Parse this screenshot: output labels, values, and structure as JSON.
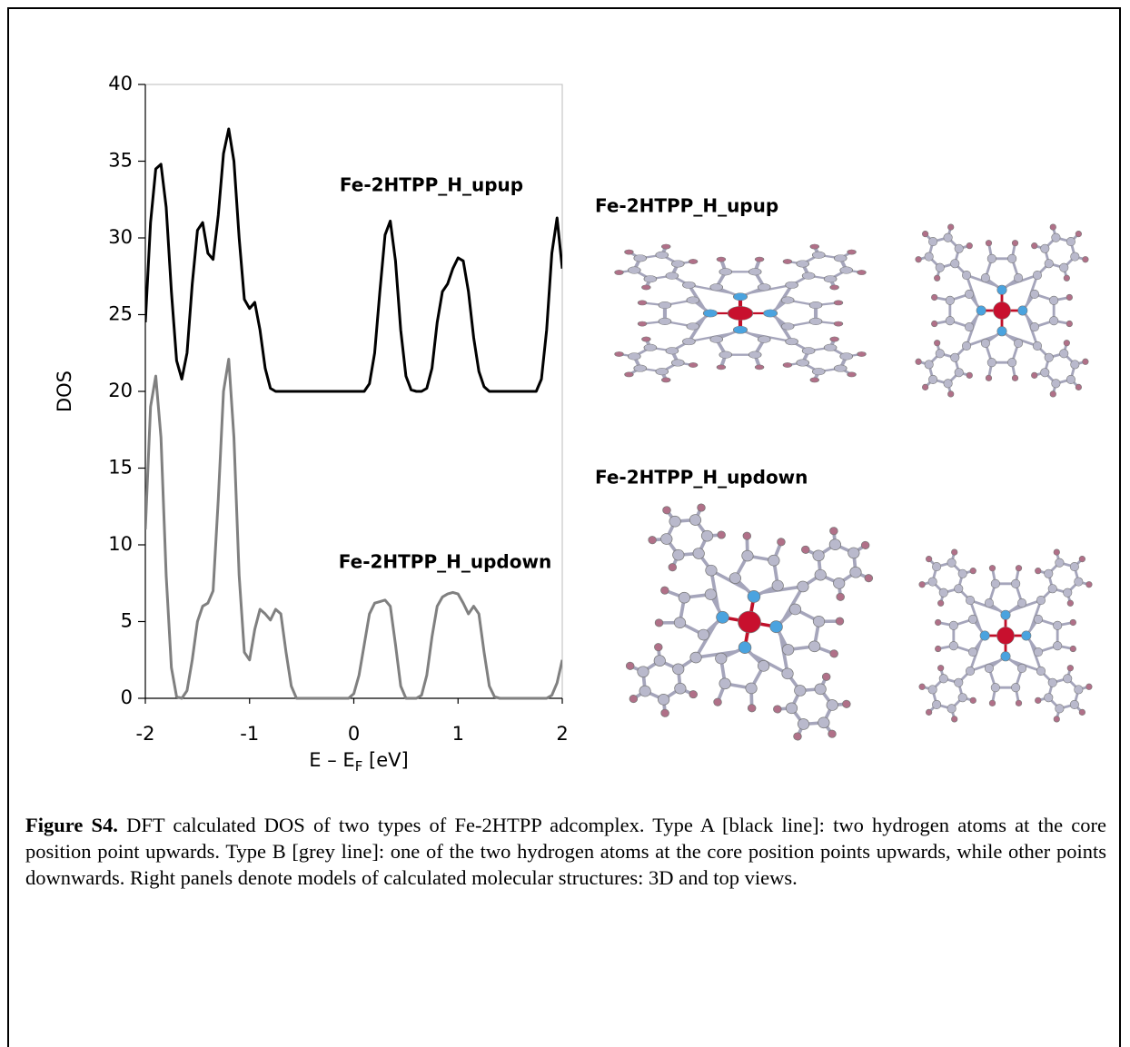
{
  "chart_data": {
    "type": "line",
    "ylabel": "DOS",
    "xlabel": [
      "E – E",
      "F",
      " [eV]"
    ],
    "x": [
      -2,
      -1.95,
      -1.9,
      -1.85,
      -1.8,
      -1.75,
      -1.7,
      -1.65,
      -1.6,
      -1.55,
      -1.5,
      -1.45,
      -1.4,
      -1.35,
      -1.3,
      -1.25,
      -1.2,
      -1.15,
      -1.1,
      -1.05,
      -1,
      -0.95,
      -0.9,
      -0.85,
      -0.8,
      -0.75,
      -0.7,
      -0.65,
      -0.6,
      -0.55,
      -0.5,
      -0.45,
      -0.4,
      -0.35,
      -0.3,
      -0.25,
      -0.2,
      -0.15,
      -0.1,
      -0.05,
      0,
      0.05,
      0.1,
      0.15,
      0.2,
      0.25,
      0.3,
      0.35,
      0.4,
      0.45,
      0.5,
      0.55,
      0.6,
      0.65,
      0.7,
      0.75,
      0.8,
      0.85,
      0.9,
      0.95,
      1,
      1.05,
      1.1,
      1.15,
      1.2,
      1.25,
      1.3,
      1.35,
      1.4,
      1.45,
      1.5,
      1.55,
      1.6,
      1.65,
      1.7,
      1.75,
      1.8,
      1.85,
      1.9,
      1.95,
      2
    ],
    "xlim": [
      -2,
      2
    ],
    "ylim": [
      0,
      40
    ],
    "xticks": [
      -2,
      -1,
      0,
      1,
      2
    ],
    "yticks": [
      0,
      5,
      10,
      15,
      20,
      25,
      30,
      35,
      40
    ],
    "series": [
      {
        "name": "Fe-2HTPP_H_upup",
        "color": "#000000",
        "values": [
          24.5,
          31,
          34.5,
          34.8,
          32,
          26.5,
          22,
          20.8,
          22.5,
          27,
          30.5,
          31,
          29,
          28.6,
          31.5,
          35.5,
          37.1,
          35,
          30,
          26,
          25.4,
          25.8,
          24,
          21.5,
          20.2,
          20,
          20,
          20,
          20,
          20,
          20,
          20,
          20,
          20,
          20,
          20,
          20,
          20,
          20,
          20,
          20,
          20,
          20,
          20.5,
          22.5,
          26.5,
          30.2,
          31.1,
          28.5,
          24,
          21,
          20.1,
          20,
          20,
          20.2,
          21.5,
          24.5,
          26.5,
          27,
          28,
          28.7,
          28.5,
          26.5,
          23.5,
          21.3,
          20.3,
          20,
          20,
          20,
          20,
          20,
          20,
          20,
          20,
          20,
          20,
          20.8,
          24,
          29,
          31.3,
          28
        ]
      },
      {
        "name": "Fe-2HTPP_H_updown",
        "color": "#808080",
        "values": [
          11,
          19,
          21,
          17,
          8,
          2,
          0.1,
          0,
          0.5,
          2.5,
          5,
          6,
          6.2,
          7,
          13,
          20,
          22.1,
          17,
          8,
          3,
          2.5,
          4.5,
          5.8,
          5.5,
          5.1,
          5.8,
          5.5,
          3,
          0.8,
          0,
          0,
          0,
          0,
          0,
          0,
          0,
          0,
          0,
          0,
          0,
          0.3,
          1.5,
          3.5,
          5.5,
          6.2,
          6.3,
          6.4,
          6,
          3.5,
          0.8,
          0,
          0,
          0,
          0.2,
          1.5,
          4,
          6,
          6.6,
          6.8,
          6.9,
          6.8,
          6.2,
          5.5,
          6,
          5.5,
          3,
          0.8,
          0.1,
          0,
          0,
          0,
          0,
          0,
          0,
          0,
          0,
          0,
          0,
          0.2,
          1,
          2.5
        ]
      }
    ]
  },
  "panels": [
    {
      "label": "Fe-2HTPP_H_upup"
    },
    {
      "label": "Fe-2HTPP_H_updown"
    }
  ],
  "caption": {
    "label": "Figure S4.",
    "text": "DFT calculated DOS of two types of Fe-2HTPP adcomplex. Type A [black line]: two hydrogen atoms at the core position point upwards. Type B [grey line]: one of the two hydrogen atoms at the core position points upwards, while other points downwards. Right panels denote models of calculated molecular structures: 3D and top views."
  }
}
